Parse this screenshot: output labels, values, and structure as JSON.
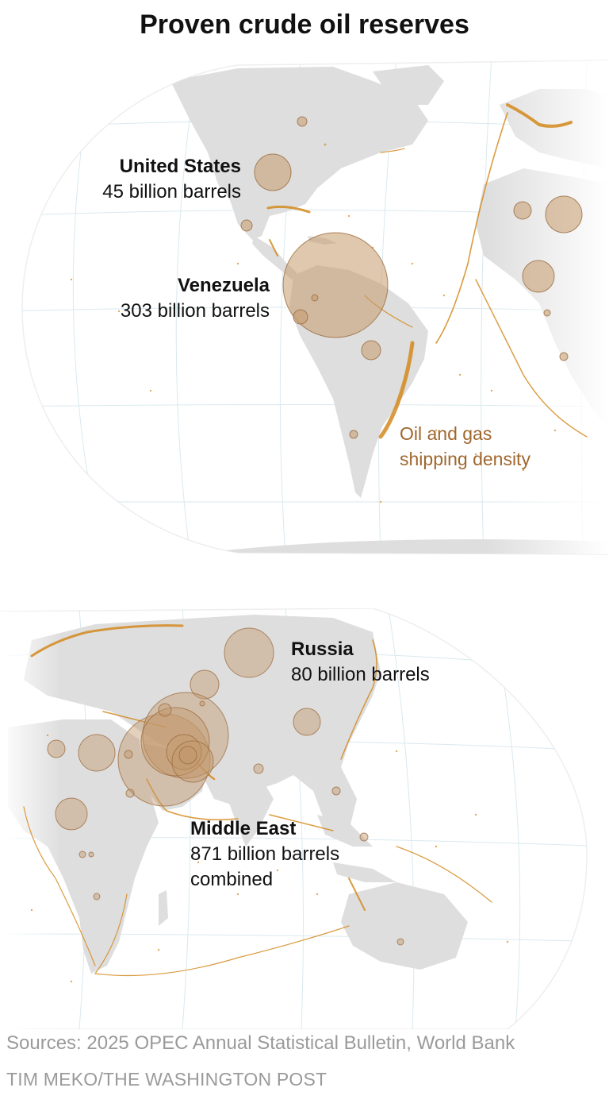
{
  "title": "Proven crude oil reserves",
  "maps": [
    {
      "labels": [
        {
          "name": "United States",
          "value": "45 billion barrels"
        },
        {
          "name": "Venezuela",
          "value": "303 billion barrels"
        }
      ],
      "legend": {
        "line1": "Oil and gas",
        "line2": "shipping density"
      }
    },
    {
      "labels": [
        {
          "name": "Russia",
          "value": "80 billion barrels"
        },
        {
          "name": "Middle East",
          "value": "871 billion barrels",
          "extra": "combined"
        }
      ]
    }
  ],
  "reserves": [
    {
      "country": "United States",
      "billion_barrels": 45
    },
    {
      "country": "Venezuela",
      "billion_barrels": 303
    },
    {
      "country": "Russia",
      "billion_barrels": 80
    },
    {
      "region": "Middle East",
      "billion_barrels": 871,
      "note": "combined"
    }
  ],
  "colors": {
    "land": "#dedede",
    "ocean": "#ffffff",
    "graticule": "#d9e9ef",
    "bubble_fill": "#c49a6c",
    "bubble_stroke": "#9a6a3c",
    "shipping": "#d48a1e",
    "legend_text": "#a0672e",
    "source_text": "#9a9a9a"
  },
  "footer": {
    "sources": "Sources: 2025 OPEC Annual Statistical Bulletin, World Bank",
    "credit": "TIM MEKO/THE WASHINGTON POST"
  }
}
